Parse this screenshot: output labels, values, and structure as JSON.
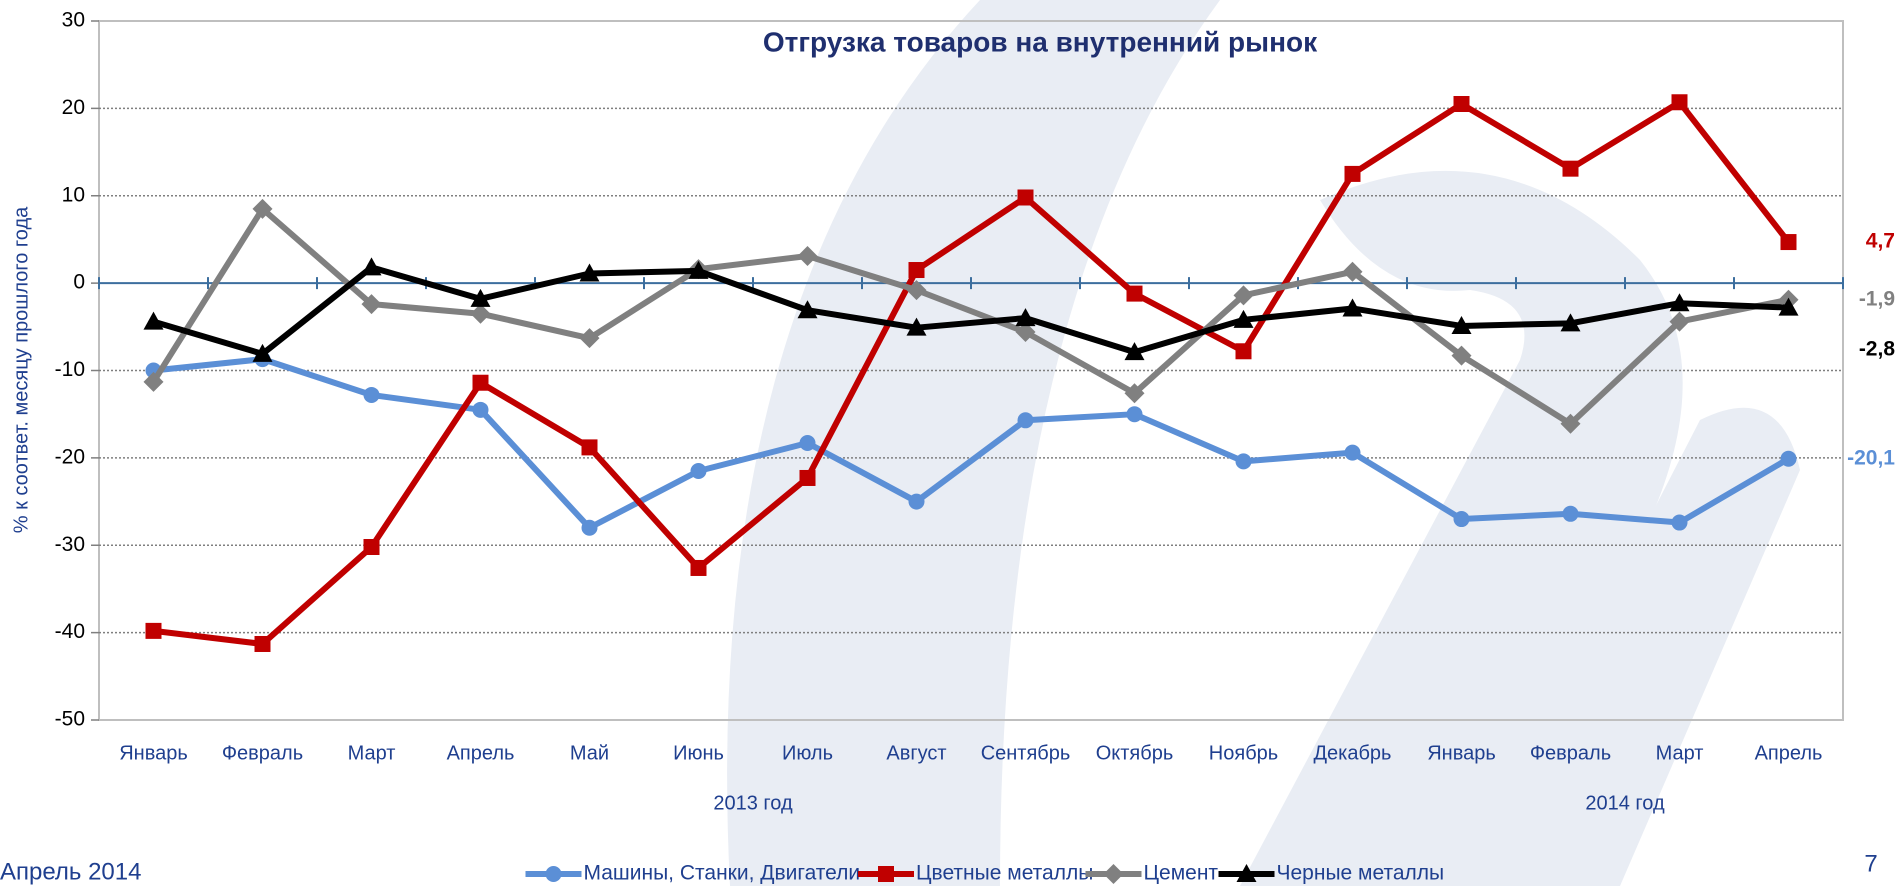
{
  "chart_data": {
    "type": "line",
    "title": "Отгрузка товаров на внутренний рынок",
    "y_label": "% к соответ. месяцу прошлого года",
    "categories": [
      "Январь",
      "Февраль",
      "Март",
      "Апрель",
      "Май",
      "Июнь",
      "Июль",
      "Август",
      "Сентябрь",
      "Октябрь",
      "Ноябрь",
      "Декабрь",
      "Январь",
      "Февраль",
      "Март",
      "Апрель"
    ],
    "year_groups": [
      {
        "label": "2013 год",
        "start": 0,
        "end": 11
      },
      {
        "label": "2014 год",
        "start": 12,
        "end": 15
      }
    ],
    "ylim": [
      -50,
      30
    ],
    "yticks": [
      -50,
      -40,
      -30,
      -20,
      -10,
      0,
      10,
      20,
      30
    ],
    "grid": true,
    "legend": "bottom",
    "series": [
      {
        "name": "Машины, Станки, Двигатели",
        "color": "#5b8fd6",
        "marker": "circle",
        "values": [
          -10,
          -8.7,
          -12.8,
          -14.5,
          -28,
          -21.5,
          -18.3,
          -25,
          -15.7,
          -15,
          -20.4,
          -19.4,
          -27,
          -26.4,
          -27.4,
          -20.1
        ],
        "value_labels": [
          null,
          null,
          null,
          null,
          null,
          null,
          null,
          null,
          null,
          null,
          null,
          null,
          null,
          null,
          null,
          "-20,1"
        ]
      },
      {
        "name": "Цветные металлы",
        "color": "#c00000",
        "marker": "square",
        "values": [
          -39.8,
          -41.3,
          -30.2,
          -11.4,
          -18.8,
          -32.6,
          -22.3,
          1.5,
          9.8,
          -1.2,
          -7.8,
          12.5,
          20.5,
          13.1,
          20.7,
          4.7
        ],
        "value_labels": [
          null,
          null,
          null,
          null,
          null,
          null,
          null,
          null,
          null,
          null,
          null,
          null,
          null,
          null,
          null,
          "4,7"
        ]
      },
      {
        "name": "Цемент",
        "color": "#808080",
        "marker": "diamond",
        "values": [
          -11.3,
          8.5,
          -2.4,
          -3.5,
          -6.3,
          1.6,
          3.1,
          -0.8,
          -5.6,
          -12.6,
          -1.4,
          1.3,
          -8.3,
          -16.1,
          -4.4,
          -1.9
        ],
        "value_labels": [
          null,
          null,
          null,
          null,
          null,
          null,
          null,
          null,
          null,
          null,
          null,
          null,
          null,
          null,
          null,
          "-1,9"
        ]
      },
      {
        "name": "Черные металлы",
        "color": "#000000",
        "marker": "triangle",
        "values": [
          -4.4,
          -8.1,
          1.8,
          -1.8,
          1.1,
          1.4,
          -3.1,
          -5.1,
          -4,
          -7.9,
          -4.2,
          -2.9,
          -4.9,
          -4.6,
          -2.3,
          -2.8
        ],
        "value_labels": [
          null,
          null,
          null,
          null,
          null,
          null,
          null,
          null,
          null,
          null,
          null,
          null,
          null,
          null,
          null,
          "-2,8"
        ]
      }
    ]
  },
  "footer": {
    "date": "Апрель 2014",
    "page": "7"
  }
}
